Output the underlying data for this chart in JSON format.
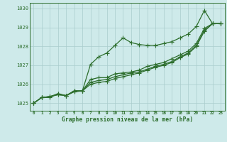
{
  "title": "Graphe pression niveau de la mer (hPa)",
  "background_color": "#ceeaea",
  "grid_color": "#aacccc",
  "line_color": "#2d6e2d",
  "xlim": [
    -0.5,
    23.5
  ],
  "ylim": [
    1024.6,
    1030.3
  ],
  "yticks": [
    1025,
    1026,
    1027,
    1028,
    1029,
    1030
  ],
  "xticks": [
    0,
    1,
    2,
    3,
    4,
    5,
    6,
    7,
    8,
    9,
    10,
    11,
    12,
    13,
    14,
    15,
    16,
    17,
    18,
    19,
    20,
    21,
    22,
    23
  ],
  "series": [
    {
      "y": [
        1025.0,
        1025.3,
        1025.3,
        1025.5,
        1025.4,
        1025.6,
        1025.65,
        1027.05,
        1027.45,
        1027.65,
        1028.05,
        1028.45,
        1028.2,
        1028.1,
        1028.05,
        1028.05,
        1028.15,
        1028.25,
        1028.45,
        1028.65,
        1029.05,
        1029.9,
        1029.2,
        1029.2
      ],
      "marker": "P",
      "lw": 0.9,
      "ms": 2.5
    },
    {
      "y": [
        1025.0,
        1025.3,
        1025.35,
        1025.5,
        1025.4,
        1025.65,
        1025.65,
        1026.25,
        1026.35,
        1026.35,
        1026.55,
        1026.6,
        1026.65,
        1026.75,
        1026.95,
        1027.05,
        1027.15,
        1027.35,
        1027.55,
        1027.75,
        1028.15,
        1028.95,
        1029.2,
        1029.2
      ],
      "marker": "P",
      "lw": 0.9,
      "ms": 2.5
    },
    {
      "y": [
        1025.0,
        1025.3,
        1025.35,
        1025.45,
        1025.4,
        1025.65,
        1025.65,
        1026.1,
        1026.2,
        1026.25,
        1026.4,
        1026.5,
        1026.6,
        1026.65,
        1026.8,
        1026.95,
        1027.05,
        1027.2,
        1027.45,
        1027.65,
        1028.05,
        1028.85,
        1029.2,
        1029.2
      ],
      "marker": "P",
      "lw": 0.9,
      "ms": 2.5
    },
    {
      "y": [
        1025.0,
        1025.3,
        1025.35,
        1025.45,
        1025.4,
        1025.65,
        1025.65,
        1026.0,
        1026.1,
        1026.15,
        1026.3,
        1026.4,
        1026.5,
        1026.6,
        1026.75,
        1026.9,
        1027.0,
        1027.15,
        1027.4,
        1027.6,
        1028.0,
        1028.8,
        1029.2,
        1029.2
      ],
      "marker": "P",
      "lw": 0.9,
      "ms": 2.5
    }
  ]
}
